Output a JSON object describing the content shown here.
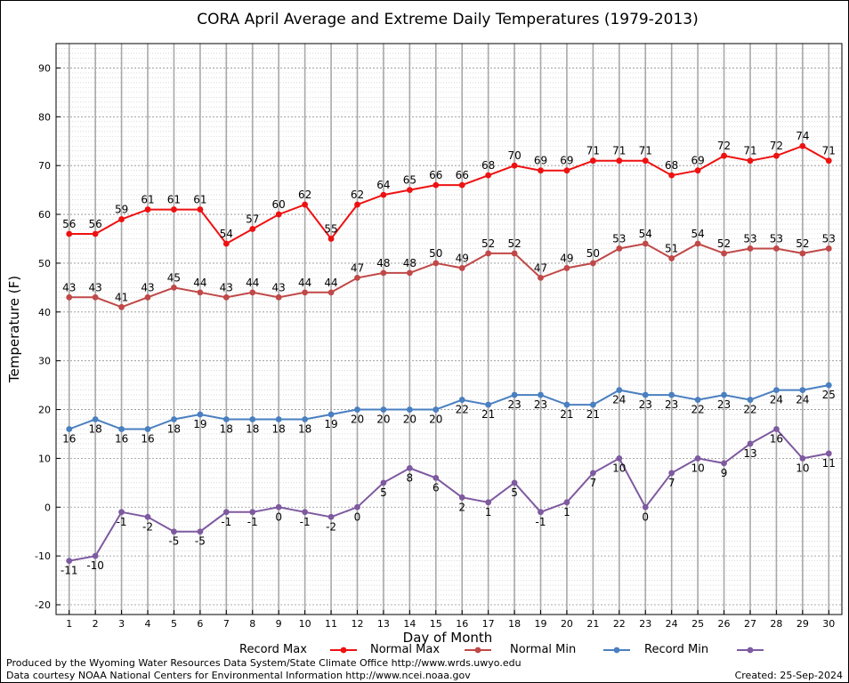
{
  "chart_data": {
    "type": "line",
    "title": "CORA April Average and Extreme Daily Temperatures (1979-2013)",
    "xlabel": "Day of Month",
    "ylabel": "Temperature (F)",
    "ylim": [
      -22,
      95
    ],
    "yticks": [
      -20,
      -10,
      0,
      10,
      20,
      30,
      40,
      50,
      60,
      70,
      80,
      90
    ],
    "xlim": [
      0.5,
      30.5
    ],
    "grid": true,
    "legend_position": "bottom",
    "x": [
      1,
      2,
      3,
      4,
      5,
      6,
      7,
      8,
      9,
      10,
      11,
      12,
      13,
      14,
      15,
      16,
      17,
      18,
      19,
      20,
      21,
      22,
      23,
      24,
      25,
      26,
      27,
      28,
      29,
      30
    ],
    "series": [
      {
        "name": "Record Max",
        "color": "#ee1111",
        "label_position": "above",
        "values": [
          56,
          56,
          59,
          61,
          61,
          61,
          54,
          57,
          60,
          62,
          55,
          62,
          64,
          65,
          66,
          66,
          68,
          70,
          69,
          69,
          71,
          71,
          71,
          68,
          69,
          72,
          71,
          72,
          74,
          71
        ]
      },
      {
        "name": "Normal Max",
        "color": "#c04848",
        "label_position": "above",
        "values": [
          43,
          43,
          41,
          43,
          45,
          44,
          43,
          44,
          43,
          44,
          44,
          47,
          48,
          48,
          50,
          49,
          52,
          52,
          47,
          49,
          50,
          53,
          54,
          51,
          54,
          52,
          53,
          53,
          52,
          53
        ]
      },
      {
        "name": "Normal Min",
        "color": "#4a7fc0",
        "label_position": "below",
        "values": [
          16,
          18,
          16,
          16,
          18,
          19,
          18,
          18,
          18,
          18,
          19,
          20,
          20,
          20,
          20,
          22,
          21,
          23,
          23,
          21,
          21,
          24,
          23,
          23,
          22,
          23,
          22,
          24,
          24,
          25
        ]
      },
      {
        "name": "Record Min",
        "color": "#7e5aa0",
        "label_position": "below",
        "values": [
          -11,
          -10,
          -1,
          -2,
          -5,
          -5,
          -1,
          -1,
          0,
          -1,
          -2,
          0,
          5,
          8,
          6,
          2,
          1,
          5,
          -1,
          1,
          7,
          10,
          0,
          7,
          10,
          9,
          13,
          16,
          10,
          11
        ]
      }
    ]
  },
  "footer": {
    "produced_by": "Produced by the Wyoming Water Resources Data System/State Climate Office http://www.wrds.uwyo.edu",
    "data_courtesy": "Data courtesy NOAA National Centers for Environmental Information http://www.ncei.noaa.gov",
    "created": "Created:  25-Sep-2024"
  }
}
